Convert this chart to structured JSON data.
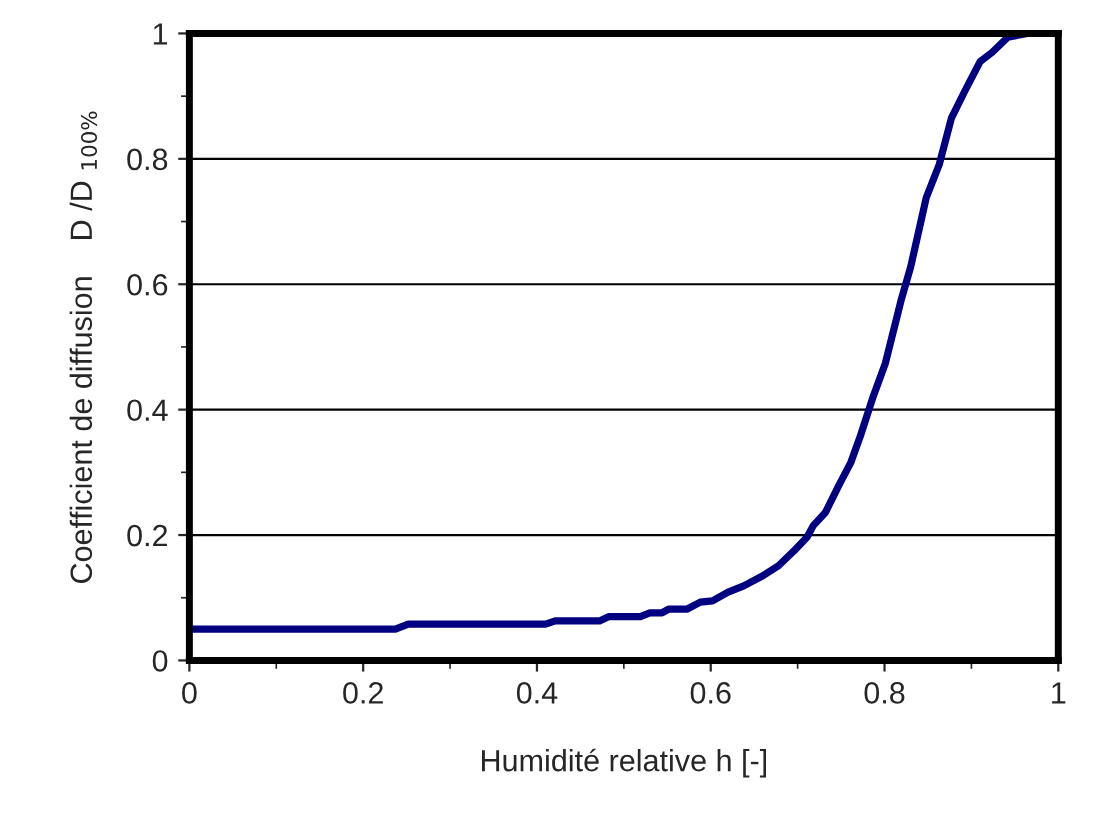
{
  "chart_data": {
    "type": "line",
    "xlabel": "Humidité relative h [-]",
    "ylabel": "Coefficient de diffusion    D /D $_{100%}$",
    "series": [
      {
        "color": "#000080",
        "x": [
          0,
          0.237,
          0.252,
          0.41,
          0.421,
          0.472,
          0.483,
          0.519,
          0.53,
          0.544,
          0.552,
          0.573,
          0.588,
          0.602,
          0.62,
          0.638,
          0.66,
          0.678,
          0.696,
          0.711,
          0.718,
          0.732,
          0.747,
          0.761,
          0.772,
          0.787,
          0.801,
          0.819,
          0.83,
          0.848,
          0.863,
          0.877,
          0.892,
          0.91,
          0.924,
          0.942,
          0.964,
          1.0
        ],
        "values": [
          0.05,
          0.05,
          0.058,
          0.058,
          0.063,
          0.063,
          0.07,
          0.07,
          0.076,
          0.076,
          0.082,
          0.082,
          0.093,
          0.095,
          0.109,
          0.119,
          0.135,
          0.151,
          0.175,
          0.197,
          0.215,
          0.236,
          0.278,
          0.315,
          0.357,
          0.421,
          0.474,
          0.574,
          0.627,
          0.738,
          0.791,
          0.865,
          0.907,
          0.955,
          0.97,
          0.994,
          1.0,
          1.0
        ]
      }
    ],
    "xlim": [
      0,
      1
    ],
    "xticks": [
      0,
      0.2,
      0.4,
      0.6,
      0.8,
      1
    ],
    "ylim": [
      0,
      1
    ],
    "yticks": [
      0,
      0.2,
      0.4,
      0.6,
      0.8,
      1
    ],
    "grid": "y",
    "marker": "none",
    "line_style": "solid"
  }
}
